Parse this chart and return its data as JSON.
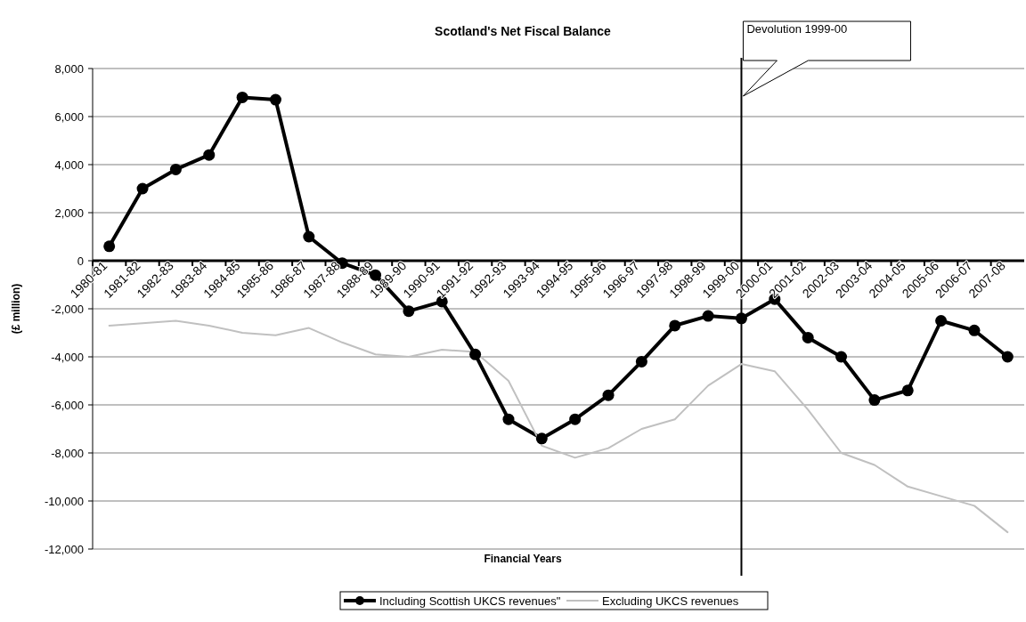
{
  "chart_data": {
    "type": "line",
    "title": "Scotland's Net Fiscal Balance",
    "xlabel": "Financial Years",
    "ylabel": "(£ million)",
    "categories": [
      "1980-81",
      "1981-82",
      "1982-83",
      "1983-84",
      "1984-85",
      "1985-86",
      "1986-87",
      "1987-88",
      "1988-89",
      "1989-90",
      "1990-91",
      "1991-92",
      "1992-93",
      "1993-94",
      "1994-95",
      "1995-96",
      "1996-97",
      "1997-98",
      "1998-99",
      "1999-00",
      "2000-01",
      "2001-02",
      "2002-03",
      "2003-04",
      "2004-05",
      "2005-06",
      "2006-07",
      "2007-08"
    ],
    "series": [
      {
        "name": "Including Scottish UKCS revenues\"",
        "color": "#000000",
        "marker": "circle",
        "values": [
          600,
          3000,
          3800,
          4400,
          6800,
          6700,
          1000,
          -100,
          -600,
          -2100,
          -1700,
          -3900,
          -6600,
          -7400,
          -6600,
          -5600,
          -4200,
          -2700,
          -2300,
          -2400,
          -1600,
          -3200,
          -4000,
          -5800,
          -5400,
          -2500,
          -2900,
          -4000
        ]
      },
      {
        "name": "Excluding UKCS revenues",
        "color": "#c0c0c0",
        "marker": "none",
        "values": [
          -2700,
          -2600,
          -2500,
          -2700,
          -3000,
          -3100,
          -2800,
          -3400,
          -3900,
          -4000,
          -3700,
          -3800,
          -5000,
          -7700,
          -8200,
          -7800,
          -7000,
          -6600,
          -5200,
          -4300,
          -4600,
          -6200,
          -8000,
          -8500,
          -9400,
          -9800,
          -10200,
          -11300
        ]
      }
    ],
    "ylim": [
      -12000,
      8000
    ],
    "yticks": [
      {
        "value": -12000,
        "label": "-12,000"
      },
      {
        "value": -10000,
        "label": "-10,000"
      },
      {
        "value": -8000,
        "label": "-8,000"
      },
      {
        "value": -6000,
        "label": "-6,000"
      },
      {
        "value": -4000,
        "label": "-4,000"
      },
      {
        "value": -2000,
        "label": "-2,000"
      },
      0,
      {
        "value": 2000,
        "label": "2,000"
      },
      {
        "value": 4000,
        "label": "4,000"
      },
      {
        "value": 6000,
        "label": "6,000"
      },
      {
        "value": 8000,
        "label": "8,000"
      }
    ],
    "grid": "y",
    "legend": "bottom",
    "line_style": "solid",
    "ref_lines": [
      {
        "axis": "x",
        "value": "1999-00",
        "label": "Devolution 1999-00",
        "color": "#000000"
      }
    ]
  }
}
